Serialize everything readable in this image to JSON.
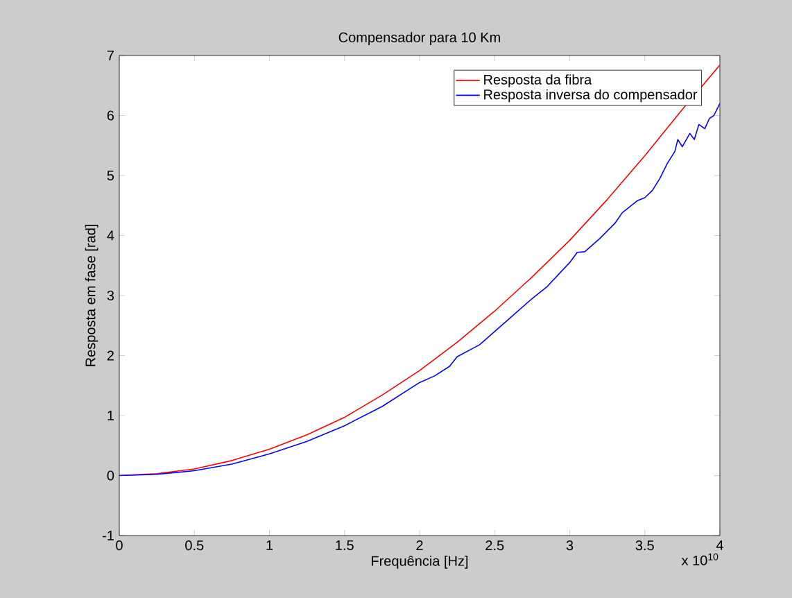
{
  "chart_data": {
    "type": "line",
    "title": "Compensador para 10 Km",
    "xlabel": "Frequência [Hz]",
    "ylabel": "Resposta em fase [rad]",
    "annotations": [
      "x 10$^{10}$"
    ],
    "xlim": [
      0,
      4
    ],
    "xticks": [
      0,
      0.5,
      1,
      1.5,
      2,
      2.5,
      3,
      3.5,
      4
    ],
    "ylim": [
      -1,
      7
    ],
    "yticks": [
      -1,
      0,
      1,
      2,
      3,
      4,
      5,
      6,
      7
    ],
    "legend": "top right",
    "series": [
      {
        "name": "Resposta da fibra",
        "color": "#ff0000",
        "x": [
          0,
          0.25,
          0.5,
          0.75,
          1,
          1.25,
          1.5,
          1.75,
          2,
          2.25,
          2.5,
          2.75,
          3,
          3.25,
          3.5,
          3.75,
          4
        ],
        "values": [
          0,
          0.03,
          0.11,
          0.25,
          0.44,
          0.68,
          0.97,
          1.34,
          1.75,
          2.22,
          2.74,
          3.31,
          3.92,
          4.6,
          5.33,
          6.1,
          6.84
        ]
      },
      {
        "name": "Resposta inversa do compensador",
        "color": "#0000ff",
        "x": [
          0,
          0.25,
          0.5,
          0.75,
          1,
          1.25,
          1.5,
          1.75,
          2,
          2.1,
          2.2,
          2.25,
          2.4,
          2.5,
          2.6,
          2.75,
          2.85,
          3,
          3.05,
          3.1,
          3.2,
          3.3,
          3.35,
          3.45,
          3.5,
          3.55,
          3.6,
          3.65,
          3.7,
          3.72,
          3.75,
          3.8,
          3.83,
          3.86,
          3.9,
          3.93,
          3.96,
          4
        ],
        "values": [
          0,
          0.02,
          0.08,
          0.19,
          0.36,
          0.57,
          0.83,
          1.15,
          1.55,
          1.66,
          1.82,
          1.98,
          2.18,
          2.4,
          2.62,
          2.95,
          3.15,
          3.55,
          3.72,
          3.73,
          3.95,
          4.2,
          4.38,
          4.58,
          4.63,
          4.75,
          4.95,
          5.2,
          5.4,
          5.6,
          5.48,
          5.7,
          5.6,
          5.85,
          5.78,
          5.95,
          6.0,
          6.2
        ]
      }
    ]
  }
}
